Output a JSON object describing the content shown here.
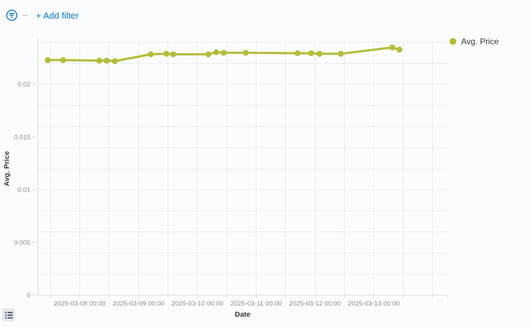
{
  "filter_bar": {
    "add_filter_label": "+ Add filter"
  },
  "legend": {
    "position": "right",
    "items": [
      {
        "label": "Avg. Price",
        "color": "#b4bd3b"
      }
    ]
  },
  "colors": {
    "accent_blue": "#0b74c4",
    "series_olive": "#b4bd3b",
    "grid_line": "#e9ecf2",
    "axis_line": "#d4d9e2",
    "tick_label": "#878e9a",
    "axis_title": "#343741",
    "legend_text": "#343741",
    "page_background": "#fbfcfd"
  },
  "chart_data": {
    "type": "line",
    "title": "",
    "xlabel": "Date",
    "ylabel": "Avg. Price",
    "legend_position": "right",
    "grid": true,
    "x_domain": [
      "2025-03-07 07:00",
      "2025-03-14 06:00"
    ],
    "y_domain": [
      0,
      0.024
    ],
    "x_grid_interval_hours": 12,
    "y_grid_step": 0.002,
    "x_ticks": [
      "2025-03-08 00:00",
      "2025-03-09 00:00",
      "2025-03-10 00:00",
      "2025-03-11 00:00",
      "2025-03-12 00:00",
      "2025-03-13 00:00"
    ],
    "y_ticks": [
      {
        "value": 0,
        "label": "0"
      },
      {
        "value": 0.005,
        "label": "0.005"
      },
      {
        "value": 0.01,
        "label": "0.01"
      },
      {
        "value": 0.015,
        "label": "0.015"
      },
      {
        "value": 0.02,
        "label": "0.02"
      }
    ],
    "series": [
      {
        "name": "Avg. Price",
        "color": "#b4bd3b",
        "x": [
          "2025-03-07 11:00",
          "2025-03-07 17:15",
          "2025-03-08 08:00",
          "2025-03-08 11:00",
          "2025-03-08 14:20",
          "2025-03-09 05:00",
          "2025-03-09 11:25",
          "2025-03-09 14:10",
          "2025-03-10 04:30",
          "2025-03-10 07:40",
          "2025-03-10 10:45",
          "2025-03-10 19:45",
          "2025-03-11 16:50",
          "2025-03-11 22:25",
          "2025-03-12 01:50",
          "2025-03-12 10:30",
          "2025-03-13 07:35",
          "2025-03-13 10:25"
        ],
        "y": [
          0.0223,
          0.0223,
          0.02225,
          0.02225,
          0.0222,
          0.02285,
          0.0229,
          0.02285,
          0.02285,
          0.02305,
          0.023,
          0.023,
          0.02295,
          0.02295,
          0.0229,
          0.0229,
          0.0235,
          0.0233
        ]
      }
    ]
  }
}
